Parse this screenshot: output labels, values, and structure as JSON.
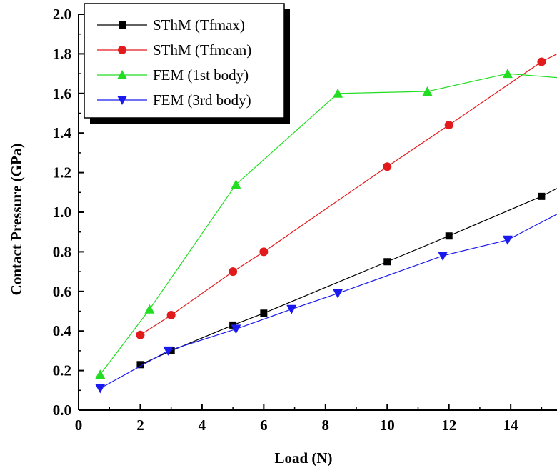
{
  "chart_data": {
    "type": "line",
    "title": "",
    "xlabel": "Load (N)",
    "ylabel": "Contact Pressure (GPa)",
    "xlim": [
      0,
      15.5
    ],
    "ylim": [
      0,
      2.0
    ],
    "xticks": [
      0,
      2,
      4,
      6,
      8,
      10,
      12,
      14
    ],
    "yticks": [
      0.0,
      0.2,
      0.4,
      0.6,
      0.8,
      1.0,
      1.2,
      1.4,
      1.6,
      1.8,
      2.0
    ],
    "xtick_labels": [
      "0",
      "2",
      "4",
      "6",
      "8",
      "10",
      "12",
      "14"
    ],
    "ytick_labels": [
      "0.0",
      "0.2",
      "0.4",
      "0.6",
      "0.8",
      "1.0",
      "1.2",
      "1.4",
      "1.6",
      "1.8",
      "2.0"
    ],
    "legend_position": "top-left",
    "grid": false,
    "series": [
      {
        "name": "SThM (Tfmax)",
        "color": "#000000",
        "marker": "square",
        "x": [
          2,
          3,
          5,
          6,
          10,
          12,
          15,
          15.5
        ],
        "y": [
          0.23,
          0.3,
          0.43,
          0.49,
          0.75,
          0.88,
          1.08,
          1.12
        ]
      },
      {
        "name": "SThM (Tfmean)",
        "color": "#e31a1c",
        "marker": "circle",
        "x": [
          2,
          3,
          5,
          6,
          10,
          12,
          15,
          15.5
        ],
        "y": [
          0.38,
          0.48,
          0.7,
          0.8,
          1.23,
          1.44,
          1.76,
          1.8
        ]
      },
      {
        "name": "FEM (1st body)",
        "color": "#22dd22",
        "marker": "triangle-up",
        "x": [
          0.7,
          2.3,
          5.1,
          8.4,
          11.3,
          13.9,
          15.5
        ],
        "y": [
          0.18,
          0.51,
          1.14,
          1.6,
          1.61,
          1.7,
          1.68
        ]
      },
      {
        "name": "FEM (3rd body)",
        "color": "#1a1aee",
        "marker": "triangle-down",
        "x": [
          0.7,
          2.9,
          5.1,
          6.9,
          8.4,
          11.8,
          13.9,
          15.5
        ],
        "y": [
          0.11,
          0.3,
          0.41,
          0.51,
          0.59,
          0.78,
          0.86,
          0.99
        ]
      }
    ]
  }
}
